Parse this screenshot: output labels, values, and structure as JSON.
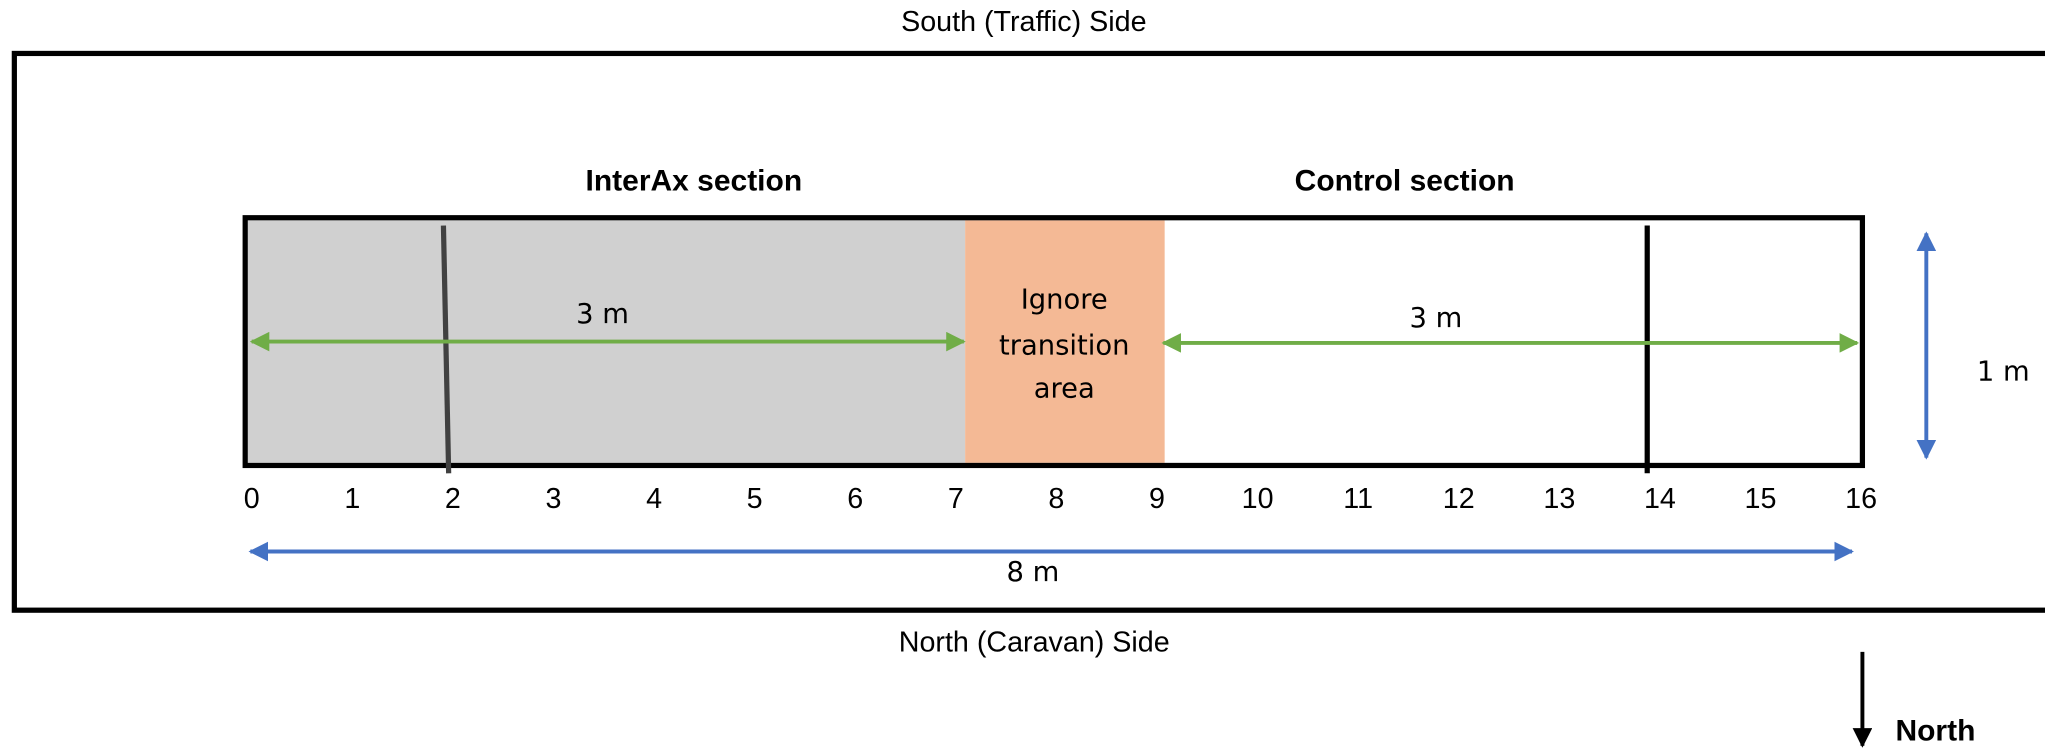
{
  "labels": {
    "top_side": "South (Traffic) Side",
    "bottom_side": "North (Caravan) Side",
    "interax": "InterAx section",
    "control": "Control section",
    "ignore": [
      "Ignore",
      "transition",
      "area"
    ],
    "interax_length": "3 m",
    "control_length": "3 m",
    "total_length": "8 m",
    "width": "1 m",
    "compass": "North"
  },
  "scale_ticks": [
    0,
    1,
    2,
    3,
    4,
    5,
    6,
    7,
    8,
    9,
    10,
    11,
    12,
    13,
    14,
    15,
    16
  ]
}
